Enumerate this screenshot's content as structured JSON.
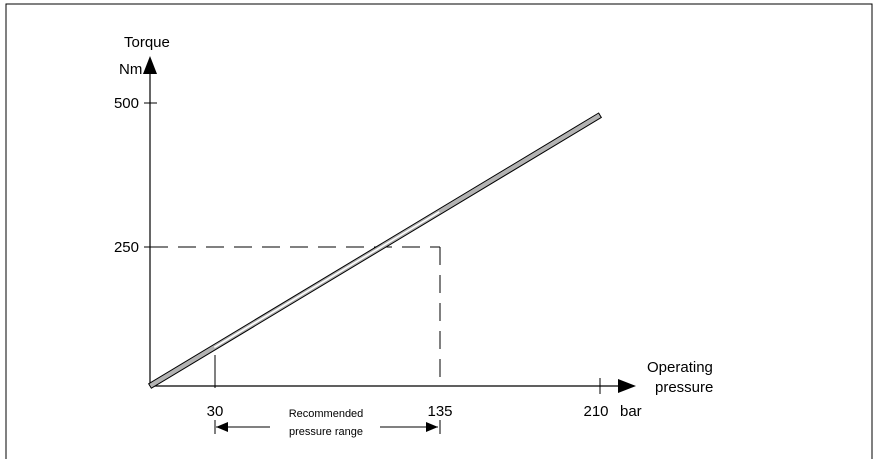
{
  "chart_data": {
    "type": "line",
    "title": "",
    "ylabel_line1": "Torque",
    "ylabel_line2": "Nm",
    "xlabel_line1": "Operating",
    "xlabel_line2": "pressure",
    "x_unit": "bar",
    "x_ticks": [
      30,
      135,
      210
    ],
    "y_ticks": [
      250,
      500
    ],
    "xlim": [
      0,
      225
    ],
    "ylim": [
      0,
      580
    ],
    "series": [
      {
        "x": [
          0,
          210
        ],
        "y": [
          0,
          487
        ]
      }
    ],
    "reference_point": {
      "x": 135,
      "y": 250
    },
    "range_annotation": {
      "from": 30,
      "to": 135,
      "label_line1": "Recommended",
      "label_line2": "pressure range"
    },
    "grid": false,
    "legend": "none"
  }
}
